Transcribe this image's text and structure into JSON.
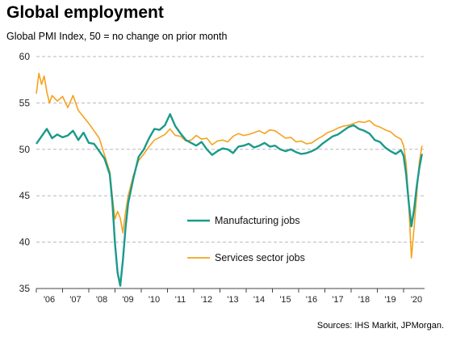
{
  "header": {
    "title": "Global employment",
    "subtitle": "Global  PMI Index, 50 = no change on prior month"
  },
  "footer": {
    "source": "Sources: IHS Markit, JPMorgan."
  },
  "colors": {
    "manufacturing": "#1a9a8a",
    "services": "#f5a21e",
    "grid": "#b8b8b8",
    "axis": "#444444"
  },
  "chart_data": {
    "type": "line",
    "title": "Global employment",
    "subtitle": "Global  PMI Index, 50 = no change on prior month",
    "ylabel": "",
    "xlabel": "",
    "ylim": [
      35,
      60
    ],
    "xlim": [
      2006.0,
      2020.8
    ],
    "yticks": [
      35,
      40,
      45,
      50,
      55,
      60
    ],
    "xticks": [
      {
        "x": 2006,
        "label": "'06"
      },
      {
        "x": 2007,
        "label": "'07"
      },
      {
        "x": 2008,
        "label": "'08"
      },
      {
        "x": 2009,
        "label": "'09"
      },
      {
        "x": 2010,
        "label": "'10"
      },
      {
        "x": 2011,
        "label": "'11"
      },
      {
        "x": 2012,
        "label": "'12"
      },
      {
        "x": 2013,
        "label": "'13"
      },
      {
        "x": 2014,
        "label": "'14"
      },
      {
        "x": 2015,
        "label": "'15"
      },
      {
        "x": 2016,
        "label": "'16"
      },
      {
        "x": 2017,
        "label": "'17"
      },
      {
        "x": 2018,
        "label": "'18"
      },
      {
        "x": 2019,
        "label": "'19"
      },
      {
        "x": 2020,
        "label": "'20"
      }
    ],
    "grid": "horizontal dashed",
    "legend": "inside, lower middle",
    "series": [
      {
        "name": "Manufacturing jobs",
        "color": "#1a9a8a",
        "points": [
          [
            2006.0,
            50.6
          ],
          [
            2006.2,
            51.4
          ],
          [
            2006.4,
            52.2
          ],
          [
            2006.6,
            51.2
          ],
          [
            2006.8,
            51.6
          ],
          [
            2007.0,
            51.3
          ],
          [
            2007.2,
            51.5
          ],
          [
            2007.4,
            52.0
          ],
          [
            2007.6,
            51.0
          ],
          [
            2007.8,
            51.8
          ],
          [
            2008.0,
            50.7
          ],
          [
            2008.2,
            50.6
          ],
          [
            2008.4,
            49.8
          ],
          [
            2008.6,
            49.0
          ],
          [
            2008.8,
            47.3
          ],
          [
            2008.9,
            44.2
          ],
          [
            2009.0,
            39.8
          ],
          [
            2009.1,
            36.7
          ],
          [
            2009.2,
            35.3
          ],
          [
            2009.3,
            38.0
          ],
          [
            2009.4,
            41.5
          ],
          [
            2009.5,
            44.2
          ],
          [
            2009.7,
            46.9
          ],
          [
            2009.9,
            49.2
          ],
          [
            2010.1,
            50.0
          ],
          [
            2010.3,
            51.2
          ],
          [
            2010.5,
            52.2
          ],
          [
            2010.7,
            52.1
          ],
          [
            2010.9,
            52.6
          ],
          [
            2011.1,
            53.8
          ],
          [
            2011.3,
            52.5
          ],
          [
            2011.5,
            51.7
          ],
          [
            2011.7,
            51.0
          ],
          [
            2011.9,
            50.7
          ],
          [
            2012.1,
            50.4
          ],
          [
            2012.3,
            50.8
          ],
          [
            2012.5,
            50.0
          ],
          [
            2012.7,
            49.4
          ],
          [
            2012.9,
            49.8
          ],
          [
            2013.1,
            50.1
          ],
          [
            2013.3,
            50.0
          ],
          [
            2013.5,
            49.6
          ],
          [
            2013.7,
            50.3
          ],
          [
            2013.9,
            50.4
          ],
          [
            2014.1,
            50.6
          ],
          [
            2014.3,
            50.2
          ],
          [
            2014.5,
            50.4
          ],
          [
            2014.7,
            50.7
          ],
          [
            2014.9,
            50.3
          ],
          [
            2015.1,
            50.4
          ],
          [
            2015.3,
            50.0
          ],
          [
            2015.5,
            49.8
          ],
          [
            2015.7,
            50.0
          ],
          [
            2015.9,
            49.7
          ],
          [
            2016.1,
            49.5
          ],
          [
            2016.3,
            49.6
          ],
          [
            2016.5,
            49.8
          ],
          [
            2016.7,
            50.1
          ],
          [
            2016.9,
            50.6
          ],
          [
            2017.1,
            51.0
          ],
          [
            2017.3,
            51.4
          ],
          [
            2017.5,
            51.6
          ],
          [
            2017.7,
            52.0
          ],
          [
            2017.9,
            52.4
          ],
          [
            2018.1,
            52.6
          ],
          [
            2018.3,
            52.2
          ],
          [
            2018.5,
            52.0
          ],
          [
            2018.7,
            51.7
          ],
          [
            2018.9,
            51.0
          ],
          [
            2019.1,
            50.8
          ],
          [
            2019.3,
            50.2
          ],
          [
            2019.5,
            49.8
          ],
          [
            2019.7,
            49.5
          ],
          [
            2019.9,
            49.9
          ],
          [
            2020.0,
            49.3
          ],
          [
            2020.1,
            47.3
          ],
          [
            2020.2,
            44.2
          ],
          [
            2020.3,
            41.7
          ],
          [
            2020.4,
            43.5
          ],
          [
            2020.5,
            46.0
          ],
          [
            2020.6,
            48.0
          ],
          [
            2020.7,
            49.5
          ]
        ]
      },
      {
        "name": "Services sector jobs",
        "color": "#f5a21e",
        "points": [
          [
            2006.0,
            56.0
          ],
          [
            2006.1,
            58.2
          ],
          [
            2006.2,
            57.0
          ],
          [
            2006.3,
            57.9
          ],
          [
            2006.4,
            56.2
          ],
          [
            2006.5,
            55.0
          ],
          [
            2006.6,
            55.8
          ],
          [
            2006.8,
            55.2
          ],
          [
            2007.0,
            55.7
          ],
          [
            2007.2,
            54.5
          ],
          [
            2007.4,
            55.8
          ],
          [
            2007.6,
            54.2
          ],
          [
            2007.8,
            53.5
          ],
          [
            2008.0,
            52.8
          ],
          [
            2008.2,
            52.0
          ],
          [
            2008.4,
            51.2
          ],
          [
            2008.6,
            49.4
          ],
          [
            2008.8,
            47.6
          ],
          [
            2008.9,
            44.8
          ],
          [
            2009.0,
            42.5
          ],
          [
            2009.1,
            43.3
          ],
          [
            2009.2,
            42.6
          ],
          [
            2009.3,
            41.0
          ],
          [
            2009.4,
            43.2
          ],
          [
            2009.5,
            45.0
          ],
          [
            2009.7,
            47.2
          ],
          [
            2009.9,
            48.8
          ],
          [
            2010.1,
            49.5
          ],
          [
            2010.3,
            50.3
          ],
          [
            2010.5,
            51.0
          ],
          [
            2010.7,
            51.3
          ],
          [
            2010.9,
            51.6
          ],
          [
            2011.1,
            52.2
          ],
          [
            2011.3,
            51.5
          ],
          [
            2011.5,
            51.4
          ],
          [
            2011.7,
            50.9
          ],
          [
            2011.9,
            51.0
          ],
          [
            2012.1,
            51.5
          ],
          [
            2012.3,
            51.1
          ],
          [
            2012.5,
            51.2
          ],
          [
            2012.7,
            50.5
          ],
          [
            2012.9,
            50.9
          ],
          [
            2013.1,
            51.0
          ],
          [
            2013.3,
            50.8
          ],
          [
            2013.5,
            51.4
          ],
          [
            2013.7,
            51.7
          ],
          [
            2013.9,
            51.5
          ],
          [
            2014.1,
            51.6
          ],
          [
            2014.3,
            51.8
          ],
          [
            2014.5,
            52.0
          ],
          [
            2014.7,
            51.7
          ],
          [
            2014.9,
            52.1
          ],
          [
            2015.1,
            52.0
          ],
          [
            2015.3,
            51.6
          ],
          [
            2015.5,
            51.2
          ],
          [
            2015.7,
            51.3
          ],
          [
            2015.9,
            50.8
          ],
          [
            2016.1,
            50.9
          ],
          [
            2016.3,
            50.6
          ],
          [
            2016.5,
            50.7
          ],
          [
            2016.7,
            51.1
          ],
          [
            2016.9,
            51.4
          ],
          [
            2017.1,
            51.8
          ],
          [
            2017.3,
            52.0
          ],
          [
            2017.5,
            52.3
          ],
          [
            2017.7,
            52.5
          ],
          [
            2017.9,
            52.6
          ],
          [
            2018.1,
            52.8
          ],
          [
            2018.3,
            53.0
          ],
          [
            2018.5,
            52.9
          ],
          [
            2018.7,
            53.1
          ],
          [
            2018.9,
            52.6
          ],
          [
            2019.1,
            52.4
          ],
          [
            2019.3,
            52.1
          ],
          [
            2019.5,
            51.9
          ],
          [
            2019.7,
            51.4
          ],
          [
            2019.9,
            51.1
          ],
          [
            2020.0,
            50.4
          ],
          [
            2020.1,
            48.5
          ],
          [
            2020.2,
            44.0
          ],
          [
            2020.3,
            38.3
          ],
          [
            2020.4,
            41.5
          ],
          [
            2020.5,
            45.2
          ],
          [
            2020.6,
            48.6
          ],
          [
            2020.7,
            50.4
          ]
        ]
      }
    ]
  }
}
